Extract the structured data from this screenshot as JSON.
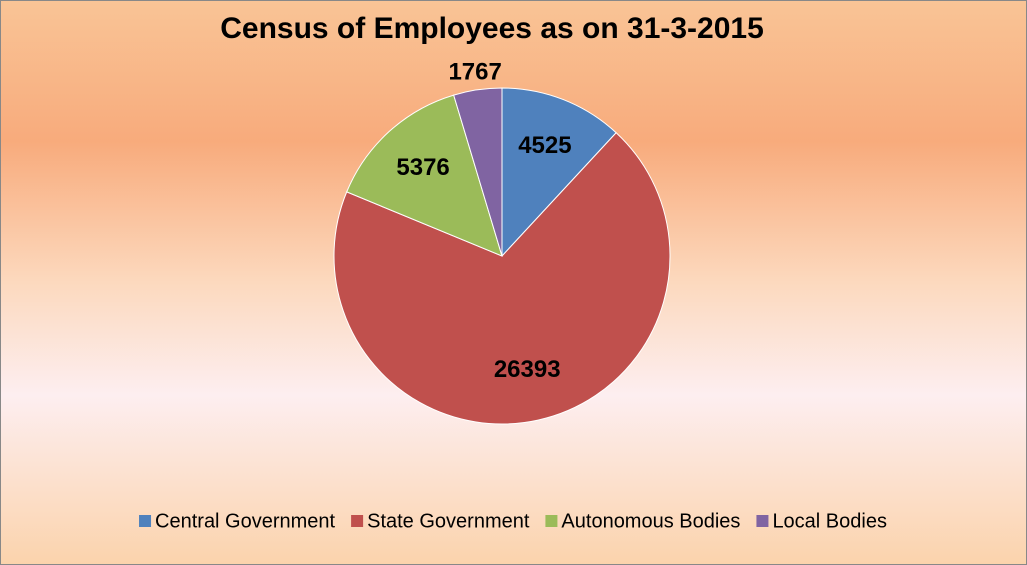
{
  "chart_data": {
    "type": "pie",
    "title": "Census of Employees as on 31-3-2015",
    "categories": [
      "Central Government",
      "State Government",
      "Autonomous Bodies",
      "Local Bodies"
    ],
    "values": [
      4525,
      26393,
      5376,
      1767
    ],
    "colors": [
      "#4f81bd",
      "#c0504d",
      "#9bbb59",
      "#8064a2"
    ],
    "legend": "bottom"
  }
}
